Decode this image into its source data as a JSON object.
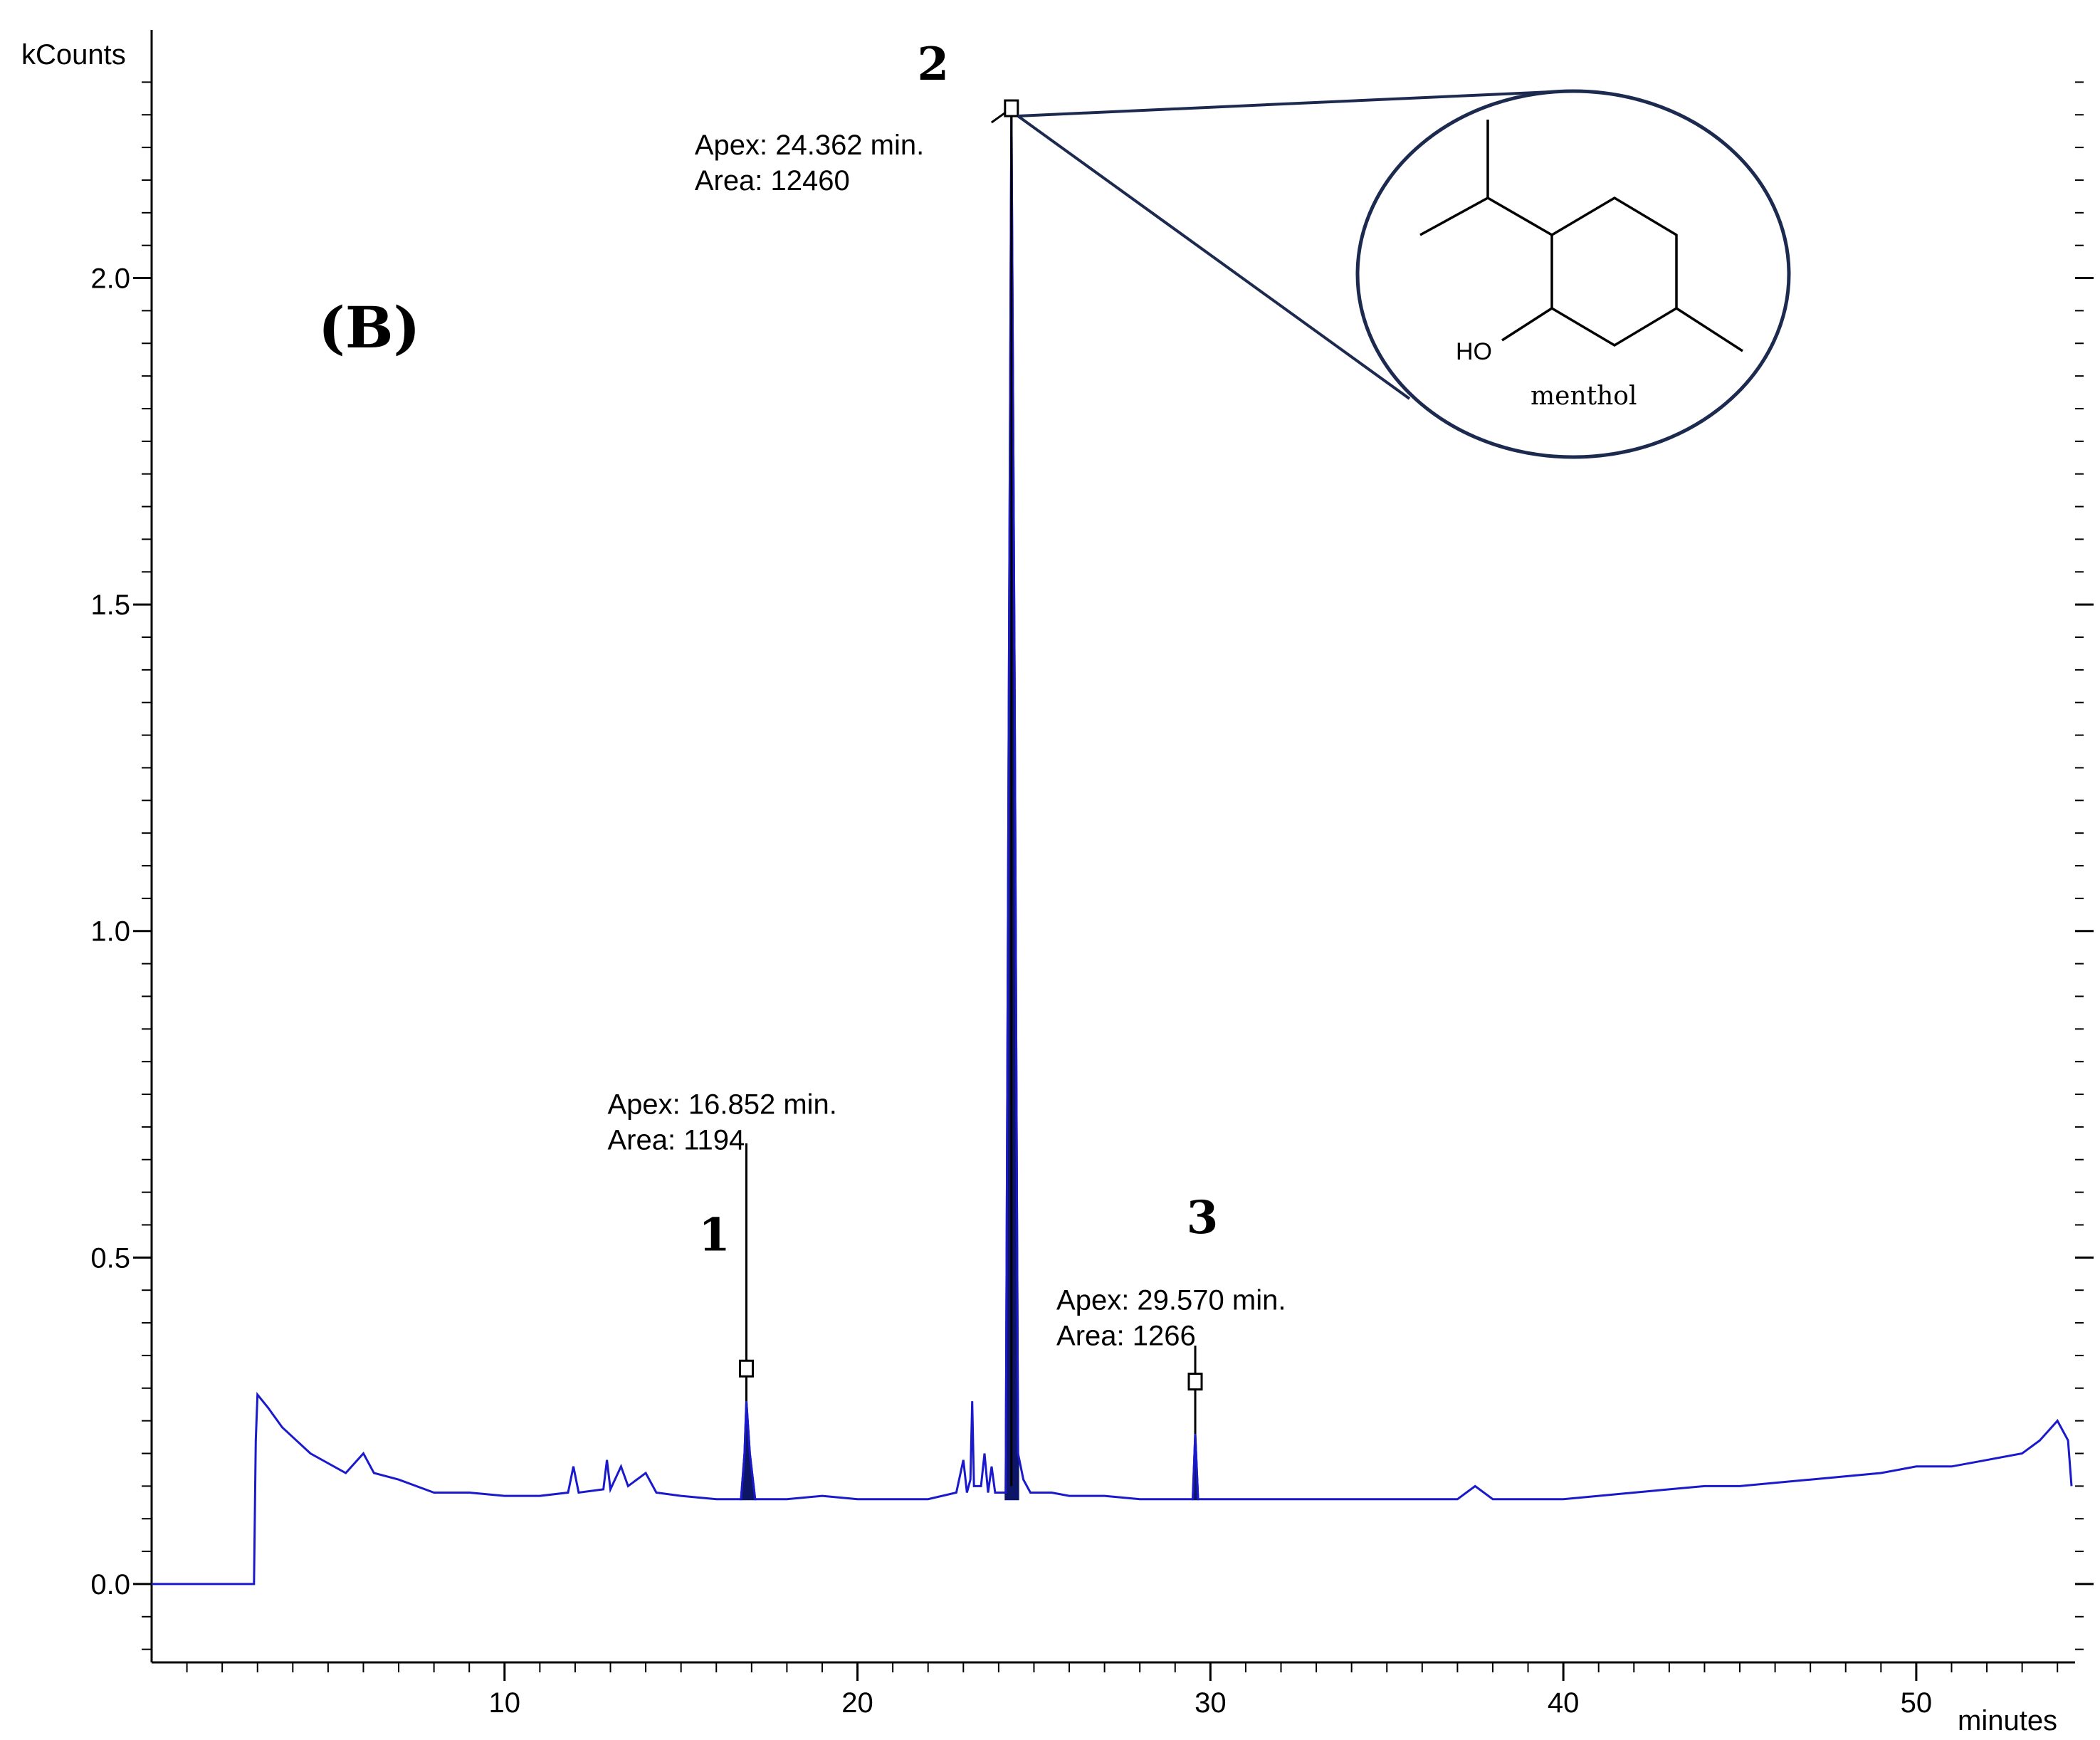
{
  "chart_data": {
    "type": "line",
    "panel_label": "(B)",
    "ylabel": "kCounts",
    "xlabel": "minutes",
    "xlim": [
      0,
      54.5
    ],
    "ylim": [
      -0.12,
      2.38
    ],
    "x_ticks": [
      10,
      20,
      30,
      40,
      50
    ],
    "y_ticks": [
      0.0,
      0.5,
      1.0,
      1.5,
      2.0
    ],
    "x_tick_labels": [
      "10",
      "20",
      "30",
      "40",
      "50"
    ],
    "y_tick_labels": [
      "0.0",
      "0.5",
      "1.0",
      "1.5",
      "2.0"
    ],
    "grid": false,
    "series_color": "#1a1acc",
    "peak_fill_color": "#0d1566",
    "series": [
      {
        "points": [
          [
            0.0,
            0.0
          ],
          [
            2.9,
            0.0
          ],
          [
            2.95,
            0.22
          ],
          [
            3.0,
            0.29
          ],
          [
            3.3,
            0.27
          ],
          [
            3.7,
            0.24
          ],
          [
            4.5,
            0.2
          ],
          [
            5.5,
            0.17
          ],
          [
            6.0,
            0.2
          ],
          [
            6.3,
            0.17
          ],
          [
            7.0,
            0.16
          ],
          [
            8.0,
            0.14
          ],
          [
            9.0,
            0.14
          ],
          [
            10.0,
            0.135
          ],
          [
            11.0,
            0.135
          ],
          [
            11.8,
            0.14
          ],
          [
            11.95,
            0.18
          ],
          [
            12.1,
            0.14
          ],
          [
            12.8,
            0.145
          ],
          [
            12.9,
            0.19
          ],
          [
            13.0,
            0.145
          ],
          [
            13.3,
            0.18
          ],
          [
            13.5,
            0.15
          ],
          [
            14.0,
            0.17
          ],
          [
            14.3,
            0.14
          ],
          [
            15.0,
            0.135
          ],
          [
            16.0,
            0.13
          ],
          [
            16.7,
            0.13
          ],
          [
            16.8,
            0.2
          ],
          [
            16.852,
            0.28
          ],
          [
            16.95,
            0.2
          ],
          [
            17.1,
            0.13
          ],
          [
            18.0,
            0.13
          ],
          [
            19.0,
            0.135
          ],
          [
            20.0,
            0.13
          ],
          [
            21.0,
            0.13
          ],
          [
            22.0,
            0.13
          ],
          [
            22.8,
            0.14
          ],
          [
            23.0,
            0.19
          ],
          [
            23.1,
            0.14
          ],
          [
            23.2,
            0.16
          ],
          [
            23.25,
            0.28
          ],
          [
            23.3,
            0.15
          ],
          [
            23.5,
            0.15
          ],
          [
            23.6,
            0.2
          ],
          [
            23.7,
            0.14
          ],
          [
            23.8,
            0.18
          ],
          [
            23.9,
            0.14
          ],
          [
            24.2,
            0.14
          ],
          [
            24.3,
            1.5
          ],
          [
            24.362,
            2.26
          ],
          [
            24.45,
            1.4
          ],
          [
            24.55,
            0.2
          ],
          [
            24.7,
            0.16
          ],
          [
            24.9,
            0.14
          ],
          [
            25.5,
            0.14
          ],
          [
            26.0,
            0.135
          ],
          [
            27.0,
            0.135
          ],
          [
            28.0,
            0.13
          ],
          [
            29.0,
            0.13
          ],
          [
            29.5,
            0.13
          ],
          [
            29.57,
            0.23
          ],
          [
            29.65,
            0.13
          ],
          [
            30.0,
            0.13
          ],
          [
            31.0,
            0.13
          ],
          [
            32.0,
            0.13
          ],
          [
            33.0,
            0.13
          ],
          [
            34.0,
            0.13
          ],
          [
            35.0,
            0.13
          ],
          [
            36.0,
            0.13
          ],
          [
            37.0,
            0.13
          ],
          [
            37.5,
            0.15
          ],
          [
            38.0,
            0.13
          ],
          [
            39.0,
            0.13
          ],
          [
            40.0,
            0.13
          ],
          [
            41.0,
            0.135
          ],
          [
            42.0,
            0.14
          ],
          [
            43.0,
            0.145
          ],
          [
            44.0,
            0.15
          ],
          [
            45.0,
            0.15
          ],
          [
            46.0,
            0.155
          ],
          [
            47.0,
            0.16
          ],
          [
            48.0,
            0.165
          ],
          [
            49.0,
            0.17
          ],
          [
            50.0,
            0.18
          ],
          [
            51.0,
            0.18
          ],
          [
            52.0,
            0.19
          ],
          [
            53.0,
            0.2
          ],
          [
            53.5,
            0.22
          ],
          [
            54.0,
            0.25
          ],
          [
            54.3,
            0.22
          ],
          [
            54.4,
            0.15
          ]
        ]
      }
    ],
    "annotations": [
      {
        "number": "1",
        "apex_text": "Apex: 16.852 min.",
        "area_text": "Area: 1194",
        "x": 16.852,
        "y": 0.28
      },
      {
        "number": "2",
        "apex_text": "Apex: 24.362 min.",
        "area_text": "Area: 12460",
        "x": 24.362,
        "y": 2.26
      },
      {
        "number": "3",
        "apex_text": "Apex: 29.570 min.",
        "area_text": "Area: 1266",
        "x": 29.57,
        "y": 0.23
      }
    ],
    "structure": {
      "name": "menthol",
      "hydroxyl_label": "HO",
      "points_to_peak": "2"
    }
  }
}
